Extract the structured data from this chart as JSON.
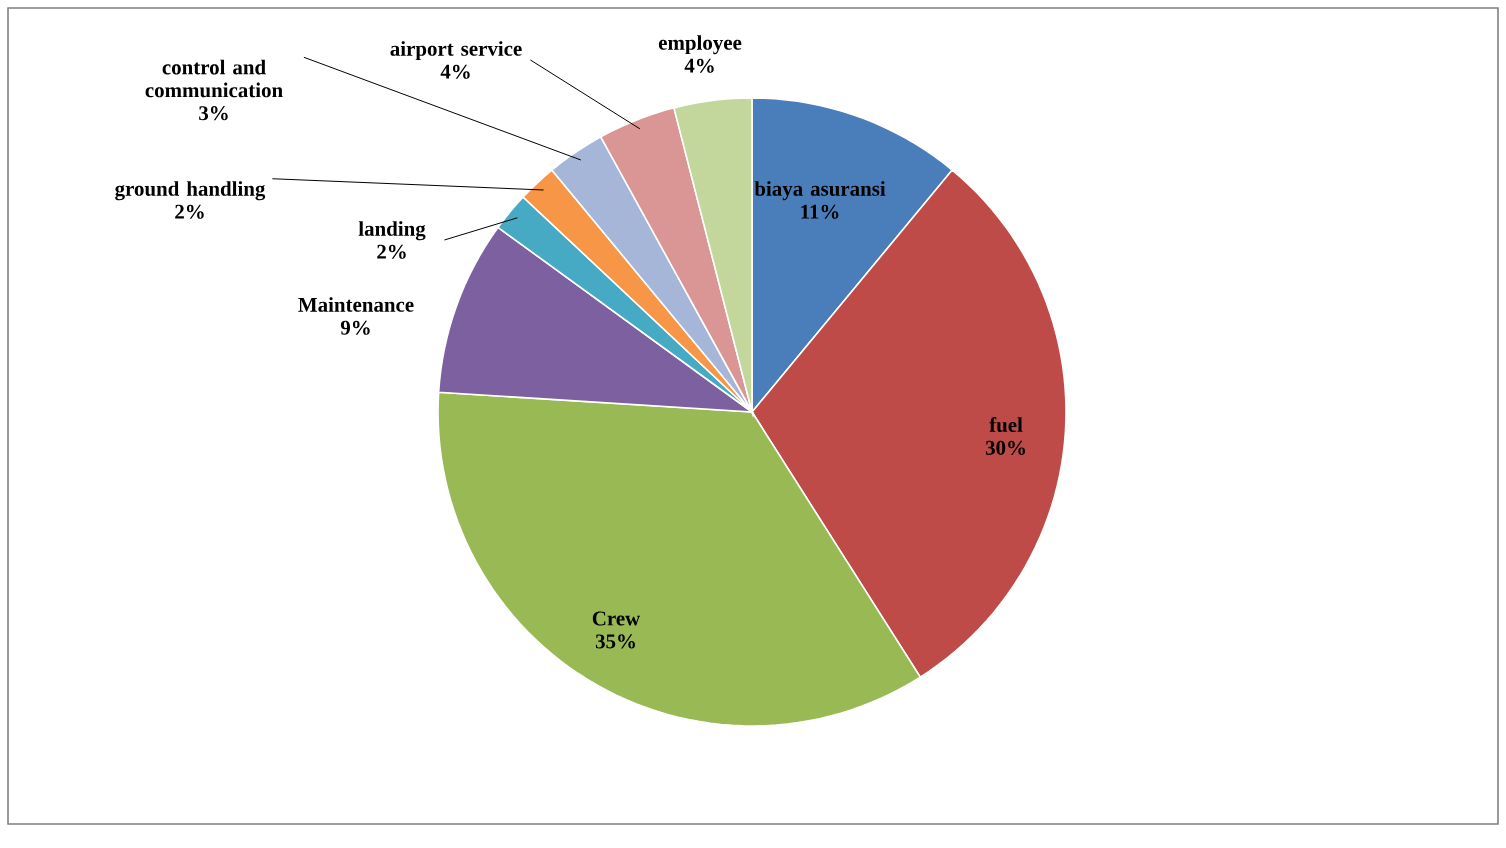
{
  "chart_data": {
    "type": "pie",
    "categories": [
      "biaya asuransi",
      "fuel",
      "Crew",
      "Maintenance",
      "landing",
      "ground handling",
      "control and communication",
      "airport service",
      "employee"
    ],
    "values": [
      11,
      30,
      35,
      9,
      2,
      2,
      3,
      4,
      4
    ],
    "value_labels": [
      "11%",
      "30%",
      "35%",
      "9%",
      "2%",
      "2%",
      "3%",
      "4%",
      "4%"
    ],
    "colors": [
      "#4a7ebb",
      "#be4b48",
      "#98b954",
      "#7d60a0",
      "#46aac5",
      "#f79646",
      "#a5b6d8",
      "#d99694",
      "#c3d69b"
    ]
  }
}
